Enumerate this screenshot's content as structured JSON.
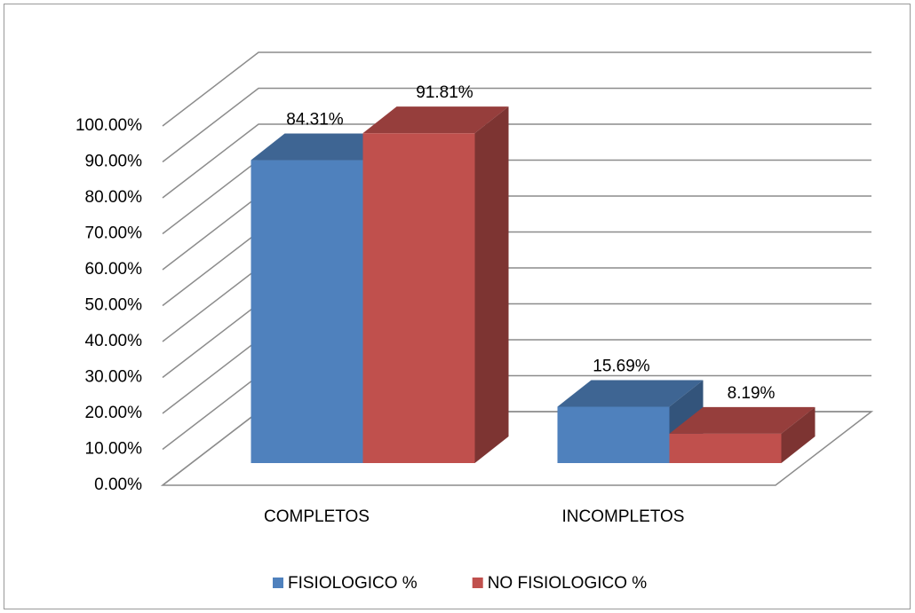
{
  "chart_data": {
    "type": "bar3d",
    "categories": [
      "COMPLETOS",
      "INCOMPLETOS"
    ],
    "series": [
      {
        "name": "FISIOLOGICO %",
        "color": "#4f81bd",
        "values": [
          84.31,
          15.69
        ],
        "value_labels": [
          "84.31%",
          "15.69%"
        ]
      },
      {
        "name": "NO FISIOLOGICO %",
        "color": "#c0504d",
        "values": [
          91.81,
          8.19
        ],
        "value_labels": [
          "91.81%",
          "8.19%"
        ]
      }
    ],
    "ylim": [
      0,
      100
    ],
    "yticks": [
      {
        "value": 0,
        "label": "0.00%"
      },
      {
        "value": 10,
        "label": "10.00%"
      },
      {
        "value": 20,
        "label": "20.00%"
      },
      {
        "value": 30,
        "label": "30.00%"
      },
      {
        "value": 40,
        "label": "40.00%"
      },
      {
        "value": 50,
        "label": "50.00%"
      },
      {
        "value": 60,
        "label": "60.00%"
      },
      {
        "value": 70,
        "label": "70.00%"
      },
      {
        "value": 80,
        "label": "80.00%"
      },
      {
        "value": 90,
        "label": "90.00%"
      },
      {
        "value": 100,
        "label": "100.00%"
      }
    ],
    "grid": true,
    "legend": "bottom"
  }
}
